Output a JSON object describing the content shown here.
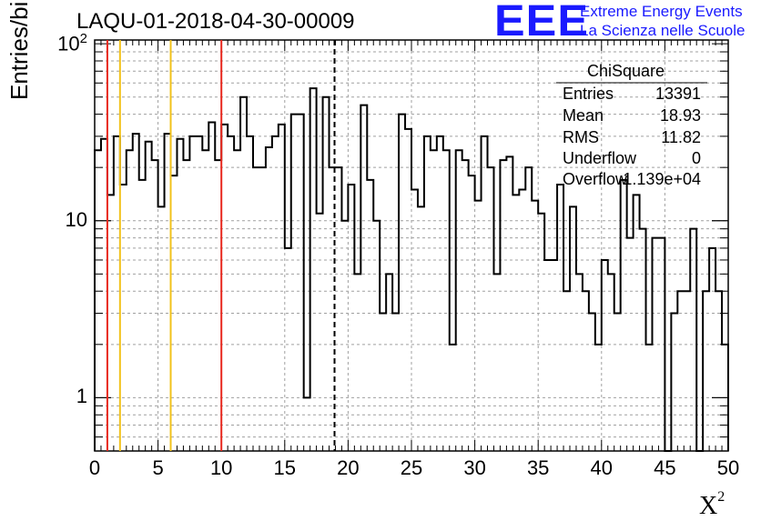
{
  "title": "LAQU-01-2018-04-30-00009",
  "logo": {
    "text": "EEE",
    "line1": "Extreme Energy Events",
    "line2": "La Scienza nelle Scuole",
    "color": "#1a1aff"
  },
  "stats": {
    "title": "ChiSquare",
    "rows": [
      {
        "key": "Entries",
        "value": "13391"
      },
      {
        "key": "Mean",
        "value": "18.93"
      },
      {
        "key": "RMS",
        "value": "11.82"
      },
      {
        "key": "Underflow",
        "value": "0"
      },
      {
        "key": "Overflow",
        "value": "1.139e+04"
      }
    ]
  },
  "chart_data": {
    "type": "bar",
    "style": "step-histogram",
    "title": "LAQU-01-2018-04-30-00009",
    "xlabel": "X",
    "xlabel_sup": "2",
    "ylabel": "Entries/bin",
    "xlim": [
      0,
      50
    ],
    "ylim": [
      0.5,
      105
    ],
    "yscale": "log",
    "bin_width": 0.5,
    "x_ticks": [
      "0",
      "5",
      "10",
      "15",
      "20",
      "25",
      "30",
      "35",
      "40",
      "45",
      "50"
    ],
    "y_ticks": [
      {
        "value": 1,
        "label": "1"
      },
      {
        "value": 10,
        "label": "10"
      },
      {
        "value": 100,
        "label": "10",
        "sup": "2"
      }
    ],
    "values": [
      25,
      29,
      14,
      30,
      16,
      25,
      31,
      17,
      28,
      22,
      12,
      31,
      18,
      29,
      22,
      30,
      30,
      25,
      36,
      22,
      35,
      30,
      25,
      50,
      30,
      20,
      20,
      26,
      30,
      35,
      7,
      40,
      40,
      1,
      56,
      11,
      50,
      20,
      20,
      10,
      16,
      5,
      45,
      17,
      10,
      3,
      5,
      3,
      40,
      33,
      15,
      12,
      30,
      25,
      30,
      25,
      2,
      25,
      22,
      18,
      13,
      30,
      20,
      5,
      22,
      23,
      14,
      15,
      20,
      13,
      11,
      6,
      6,
      16,
      4,
      12,
      5,
      4,
      3,
      2,
      6,
      5,
      3,
      17,
      8,
      14,
      9,
      2,
      8,
      8,
      0.3,
      3,
      4,
      4,
      9,
      0.3,
      4,
      7,
      4,
      2
    ],
    "vertical_lines": [
      {
        "x": 1,
        "color": "#e8281e",
        "style": "solid"
      },
      {
        "x": 2,
        "color": "#f2c21b",
        "style": "solid"
      },
      {
        "x": 6,
        "color": "#f2c21b",
        "style": "solid"
      },
      {
        "x": 10,
        "color": "#e8281e",
        "style": "solid"
      },
      {
        "x": 18.93,
        "color": "#000000",
        "style": "dashed"
      }
    ],
    "grid": true,
    "legend": "top-right stats box"
  }
}
